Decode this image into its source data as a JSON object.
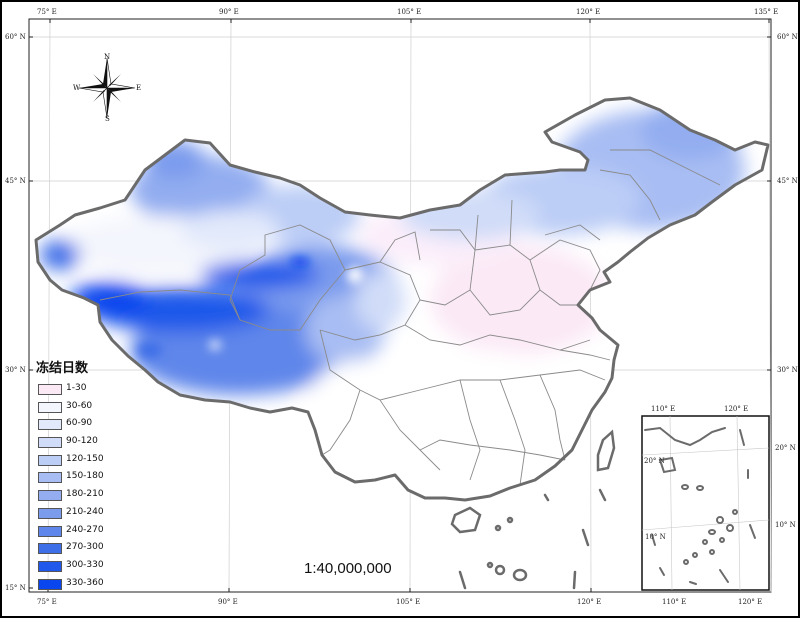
{
  "legend": {
    "title": "冻结日数",
    "items": [
      {
        "label": "1-30",
        "color": "#fbe9f6"
      },
      {
        "label": "30-60",
        "color": "#f4f6fd"
      },
      {
        "label": "60-90",
        "color": "#e2e9fb"
      },
      {
        "label": "90-120",
        "color": "#d0dcf8"
      },
      {
        "label": "120-150",
        "color": "#bccdf6"
      },
      {
        "label": "150-180",
        "color": "#a8bdf3"
      },
      {
        "label": "180-210",
        "color": "#93adf0"
      },
      {
        "label": "210-240",
        "color": "#7b9bed"
      },
      {
        "label": "240-270",
        "color": "#5f86ea"
      },
      {
        "label": "270-300",
        "color": "#3e6ee8"
      },
      {
        "label": "300-330",
        "color": "#1f58ea"
      },
      {
        "label": "330-360",
        "color": "#0a46ee"
      }
    ]
  },
  "scale_text": "1:40,000,000",
  "compass": {
    "n": "N",
    "s": "S",
    "e": "E",
    "w": "W",
    "icon": "compass-rose-icon"
  },
  "graticule": {
    "lon_labels": [
      "75° E",
      "90° E",
      "105° E",
      "120° E",
      "135° E"
    ],
    "lat_labels": [
      "60° N",
      "45° N",
      "30° N",
      "15° N"
    ]
  },
  "inset": {
    "lon_labels": [
      "110° E",
      "120° E"
    ],
    "lat_labels": [
      "20° N",
      "10° N"
    ],
    "bottom_labels": [
      "110° E",
      "120° E"
    ]
  },
  "colors": {
    "border": "#6b6b6b",
    "grid": "#c8c8c8",
    "frame": "#000000"
  }
}
